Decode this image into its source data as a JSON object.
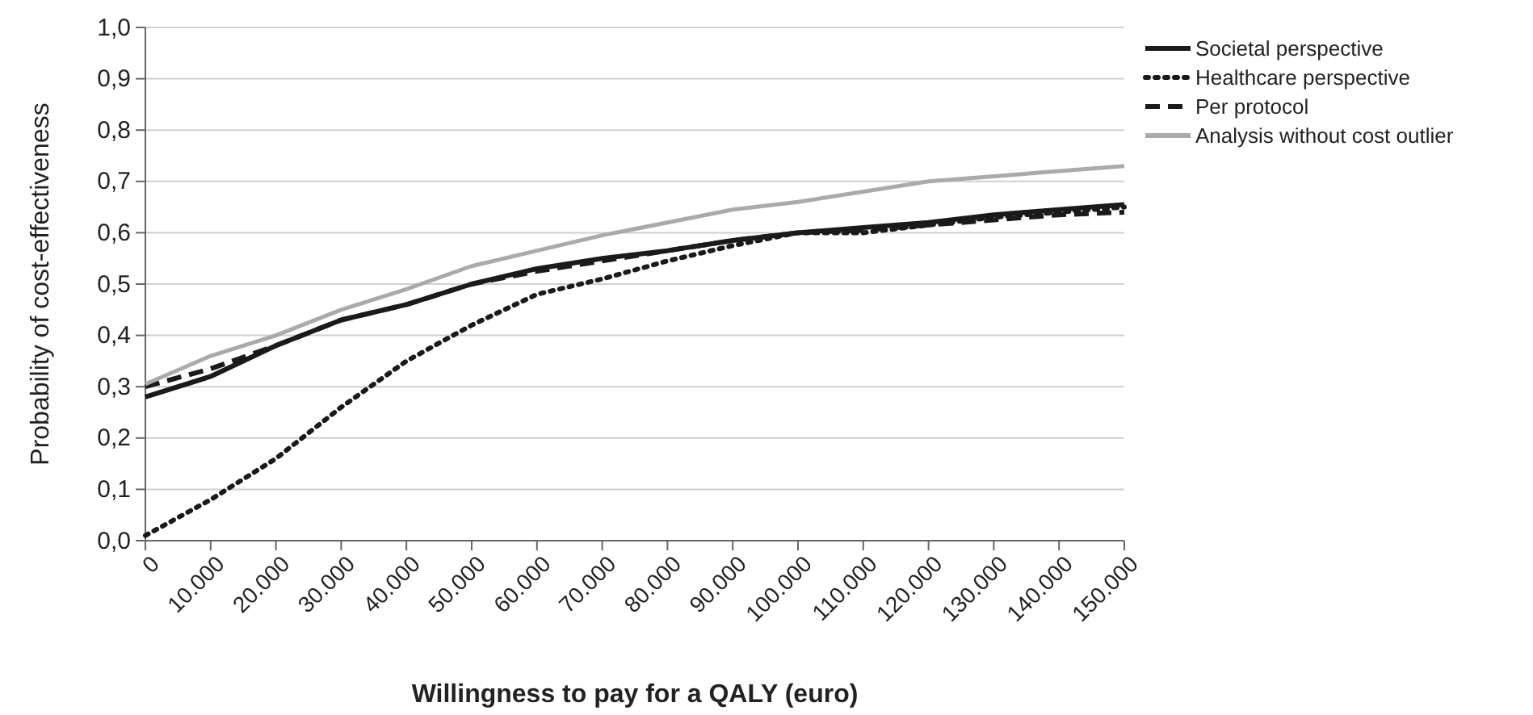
{
  "chart_data": {
    "type": "line",
    "xlabel": "Willingness to pay for a QALY (euro)",
    "ylabel": "Probability of cost-effectiveness",
    "categories": [
      "0",
      "10.000",
      "20.000",
      "30.000",
      "40.000",
      "50.000",
      "60.000",
      "70.000",
      "80.000",
      "90.000",
      "100.000",
      "110.000",
      "120.000",
      "130.000",
      "140.000",
      "150.000"
    ],
    "ylim": [
      0,
      1
    ],
    "yticks": [
      {
        "value": 0,
        "label": "0,0"
      },
      {
        "value": 0.1,
        "label": "0,1"
      },
      {
        "value": 0.2,
        "label": "0,2"
      },
      {
        "value": 0.3,
        "label": "0,3"
      },
      {
        "value": 0.4,
        "label": "0,4"
      },
      {
        "value": 0.5,
        "label": "0,5"
      },
      {
        "value": 0.6,
        "label": "0,6"
      },
      {
        "value": 0.7,
        "label": "0,7"
      },
      {
        "value": 0.8,
        "label": "0,8"
      },
      {
        "value": 0.9,
        "label": "0,9"
      },
      {
        "value": 1,
        "label": "1,0"
      }
    ],
    "grid": "y",
    "legend": "right",
    "marker": "none",
    "series": [
      {
        "name": "Societal perspective",
        "color": "#1a1a1a",
        "line_style": "solid",
        "values": [
          0.28,
          0.32,
          0.38,
          0.43,
          0.46,
          0.5,
          0.53,
          0.55,
          0.565,
          0.585,
          0.6,
          0.61,
          0.62,
          0.635,
          0.645,
          0.655
        ]
      },
      {
        "name": "Healthcare perspective",
        "color": "#1a1a1a",
        "line_style": "dotted",
        "values": [
          0.01,
          0.08,
          0.16,
          0.26,
          0.35,
          0.42,
          0.48,
          0.51,
          0.545,
          0.575,
          0.6,
          0.6,
          0.615,
          0.63,
          0.64,
          0.65
        ]
      },
      {
        "name": "Per protocol",
        "color": "#1a1a1a",
        "line_style": "dashed",
        "values": [
          0.3,
          0.335,
          0.38,
          0.43,
          0.46,
          0.5,
          0.525,
          0.545,
          0.565,
          0.585,
          0.6,
          0.605,
          0.615,
          0.625,
          0.635,
          0.64
        ]
      },
      {
        "name": "Analysis without cost outlier",
        "color": "#aaaaaa",
        "line_style": "solid",
        "values": [
          0.305,
          0.36,
          0.4,
          0.45,
          0.49,
          0.535,
          0.565,
          0.595,
          0.62,
          0.645,
          0.66,
          0.68,
          0.7,
          0.71,
          0.72,
          0.73
        ]
      }
    ]
  }
}
